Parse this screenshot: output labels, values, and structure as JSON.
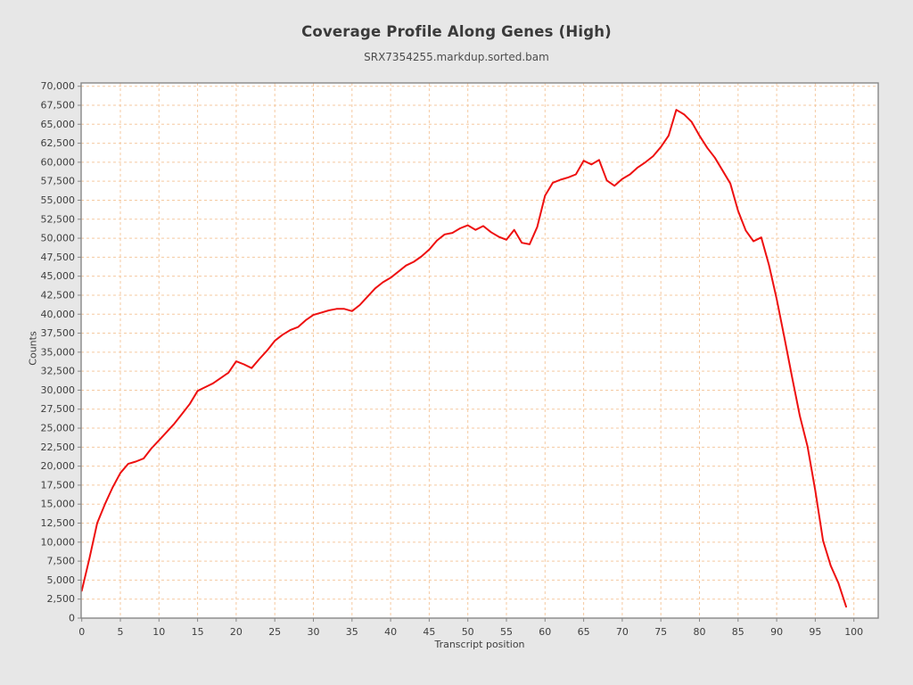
{
  "chart_data": {
    "type": "line",
    "title": "Coverage Profile Along Genes (High)",
    "subtitle": "SRX7354255.markdup.sorted.bam",
    "xlabel": "Transcript position",
    "ylabel": "Counts",
    "series_name": "coverage",
    "series_color": "#ee1010",
    "grid_color": "#f5c9a0",
    "grid_style": "dashed",
    "plot_bg": "#ffffff",
    "page_bg": "#e7e7e7",
    "axis_color": "#878787",
    "tick_label_color": "#3f3f3f",
    "xlim": [
      -0.6,
      103.2
    ],
    "ylim": [
      0,
      70400
    ],
    "x_ticks": [
      0,
      5,
      10,
      15,
      20,
      25,
      30,
      35,
      40,
      45,
      50,
      55,
      60,
      65,
      70,
      75,
      80,
      85,
      90,
      95,
      100
    ],
    "y_ticks": [
      0,
      2500,
      5000,
      7500,
      10000,
      12500,
      15000,
      17500,
      20000,
      22500,
      25000,
      27500,
      30000,
      32500,
      35000,
      37500,
      40000,
      42500,
      45000,
      47500,
      50000,
      52500,
      55000,
      57500,
      60000,
      62500,
      65000,
      67500,
      70000
    ],
    "x": [
      0,
      1,
      2,
      3,
      4,
      5,
      6,
      7,
      8,
      9,
      10,
      11,
      12,
      13,
      14,
      15,
      16,
      17,
      18,
      19,
      20,
      21,
      22,
      23,
      24,
      25,
      26,
      27,
      28,
      29,
      30,
      31,
      32,
      33,
      34,
      35,
      36,
      37,
      38,
      39,
      40,
      41,
      42,
      43,
      44,
      45,
      46,
      47,
      48,
      49,
      50,
      51,
      52,
      53,
      54,
      55,
      56,
      57,
      58,
      59,
      60,
      61,
      62,
      63,
      64,
      65,
      66,
      67,
      68,
      69,
      70,
      71,
      72,
      73,
      74,
      75,
      76,
      77,
      78,
      79,
      80,
      81,
      82,
      83,
      84,
      85,
      86,
      87,
      88,
      89,
      90,
      91,
      92,
      93,
      94,
      95,
      96,
      97,
      98,
      99
    ],
    "values": [
      3600,
      7900,
      12500,
      15000,
      17200,
      19100,
      20300,
      20600,
      21000,
      22300,
      23400,
      24500,
      25600,
      26900,
      28200,
      29900,
      30400,
      30900,
      31600,
      32300,
      33800,
      33400,
      32900,
      34100,
      35200,
      36500,
      37300,
      37900,
      38300,
      39200,
      39900,
      40200,
      40500,
      40700,
      40700,
      40400,
      41200,
      42300,
      43400,
      44200,
      44800,
      45600,
      46400,
      46900,
      47600,
      48500,
      49700,
      50500,
      50700,
      51300,
      51700,
      51100,
      51600,
      50800,
      50200,
      49800,
      51100,
      49400,
      49200,
      51500,
      55600,
      57300,
      57700,
      58000,
      58400,
      60200,
      59700,
      60300,
      57600,
      56900,
      57800,
      58400,
      59300,
      60000,
      60800,
      62000,
      63500,
      66900,
      66300,
      65300,
      63500,
      61900,
      60600,
      58900,
      57200,
      53600,
      51000,
      49600,
      50100,
      46500,
      42000,
      36900,
      31700,
      26600,
      22600,
      16800,
      10200,
      6900,
      4600,
      1500
    ]
  }
}
